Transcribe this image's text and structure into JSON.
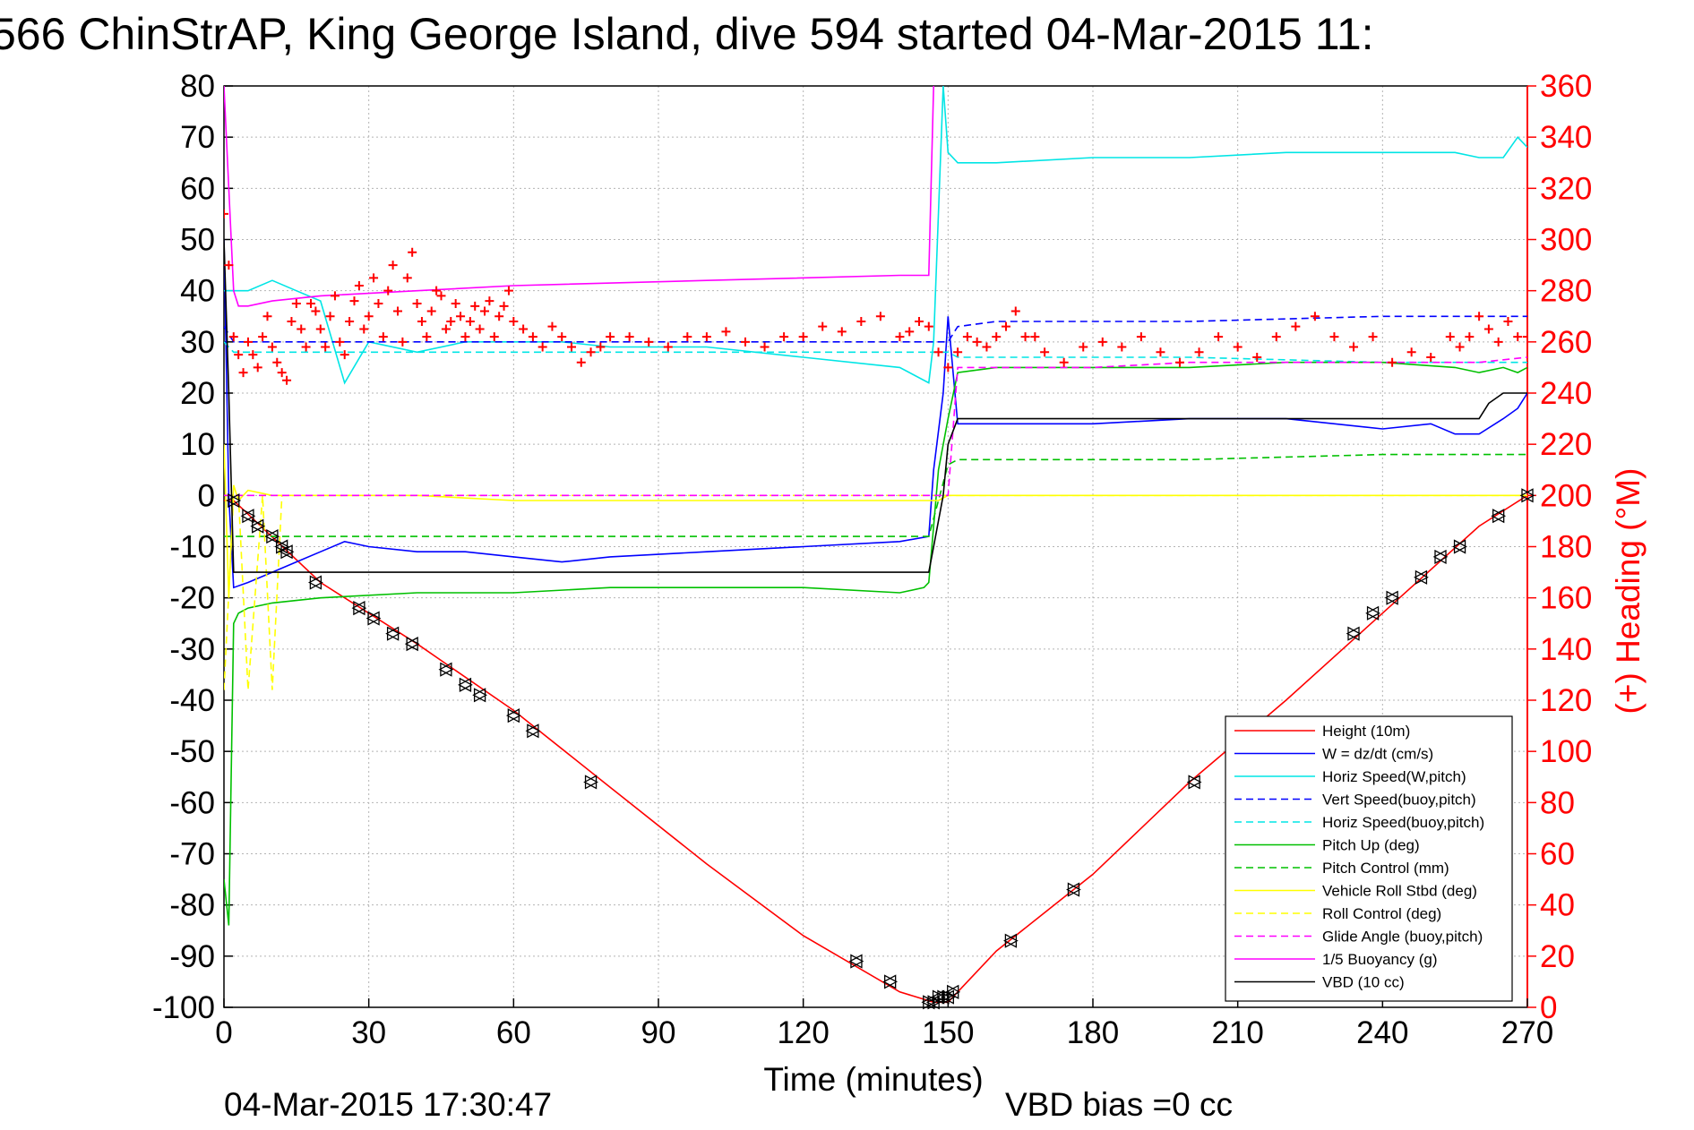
{
  "chart_data": {
    "type": "line",
    "title": "566 ChinStrAP, King George Island, dive 594 started 04-Mar-2015 11:",
    "xlabel": "Time (minutes)",
    "ylabel_right": "(+) Heading (°M)",
    "xlim": [
      0,
      270
    ],
    "ylim_left": [
      -100,
      80
    ],
    "ylim_right": [
      0,
      360
    ],
    "grid": true,
    "legend_position": "bottom-right",
    "x_ticks": [
      "0",
      "30",
      "60",
      "90",
      "120",
      "150",
      "180",
      "210",
      "240",
      "270"
    ],
    "y_ticks_left": [
      "80",
      "70",
      "60",
      "50",
      "40",
      "30",
      "20",
      "10",
      "0",
      "-10",
      "-20",
      "-30",
      "-40",
      "-50",
      "-60",
      "-70",
      "-80",
      "-90",
      "-100"
    ],
    "y_ticks_right": [
      "360",
      "340",
      "320",
      "300",
      "280",
      "260",
      "240",
      "220",
      "200",
      "180",
      "160",
      "140",
      "120",
      "100",
      "80",
      "60",
      "40",
      "20",
      "0"
    ],
    "footer_date": "04-Mar-2015 17:30:47",
    "footer_note": "VBD bias =0 cc",
    "series": [
      {
        "name": "Height (10m)",
        "color": "#ff0000",
        "style": "solid",
        "x": [
          0,
          2,
          20,
          40,
          60,
          80,
          100,
          120,
          140,
          147,
          150,
          160,
          180,
          200,
          220,
          240,
          260,
          270
        ],
        "y": [
          -1,
          -1,
          -17,
          -29,
          -42,
          -57,
          -72,
          -86,
          -97,
          -99,
          -99,
          -89,
          -74,
          -56,
          -40,
          -23,
          -6,
          0
        ]
      },
      {
        "name": "W = dz/dt (cm/s)",
        "color": "#0000ff",
        "style": "solid",
        "x": [
          0,
          1,
          2,
          5,
          10,
          15,
          20,
          25,
          30,
          40,
          50,
          60,
          70,
          80,
          100,
          120,
          140,
          146,
          147,
          149,
          150,
          152,
          160,
          180,
          200,
          220,
          240,
          250,
          255,
          260,
          265,
          268,
          270
        ],
        "y": [
          50,
          0,
          -18,
          -17,
          -15,
          -13,
          -11,
          -9,
          -10,
          -11,
          -11,
          -12,
          -13,
          -12,
          -11,
          -10,
          -9,
          -8,
          5,
          20,
          35,
          14,
          14,
          14,
          15,
          15,
          13,
          14,
          12,
          12,
          15,
          17,
          20
        ]
      },
      {
        "name": "Horiz Speed(W,pitch)",
        "color": "#00e5e5",
        "style": "solid",
        "x": [
          0,
          2,
          5,
          10,
          15,
          20,
          25,
          30,
          40,
          50,
          60,
          70,
          80,
          100,
          120,
          140,
          146,
          147,
          149,
          150,
          152,
          160,
          180,
          200,
          220,
          240,
          250,
          255,
          260,
          265,
          268,
          270
        ],
        "y": [
          40,
          40,
          40,
          42,
          40,
          38,
          22,
          30,
          28,
          30,
          30,
          30,
          29,
          29,
          27,
          25,
          22,
          30,
          80,
          67,
          65,
          65,
          66,
          66,
          67,
          67,
          67,
          67,
          66,
          66,
          70,
          68
        ]
      },
      {
        "name": "Vert Speed(buoy,pitch)",
        "color": "#0000ff",
        "style": "dashed",
        "x": [
          0,
          2,
          20,
          60,
          100,
          140,
          146,
          150,
          152,
          160,
          200,
          240,
          260,
          265,
          270
        ],
        "y": [
          33,
          30,
          30,
          30,
          30,
          30,
          30,
          30,
          33,
          34,
          34,
          35,
          35,
          35,
          35
        ]
      },
      {
        "name": "Horiz Speed(buoy,pitch)",
        "color": "#00e5e5",
        "style": "dashed",
        "x": [
          0,
          2,
          20,
          60,
          100,
          140,
          146,
          150,
          152,
          160,
          200,
          240,
          260,
          265,
          270
        ],
        "y": [
          30,
          28,
          28,
          28,
          28,
          28,
          28,
          28,
          27,
          27,
          27,
          26,
          26,
          26,
          26
        ]
      },
      {
        "name": "Pitch Up (deg)",
        "color": "#00c000",
        "style": "solid",
        "x": [
          0,
          1,
          2,
          3,
          5,
          10,
          20,
          40,
          60,
          80,
          100,
          120,
          140,
          145,
          146,
          148,
          150,
          152,
          160,
          180,
          200,
          220,
          240,
          255,
          260,
          265,
          268,
          270
        ],
        "y": [
          -75,
          -84,
          -25,
          -23,
          -22,
          -21,
          -20,
          -19,
          -19,
          -18,
          -18,
          -18,
          -19,
          -18,
          -17,
          5,
          15,
          24,
          25,
          25,
          25,
          26,
          26,
          25,
          24,
          25,
          24,
          25
        ]
      },
      {
        "name": "Pitch Control (mm)",
        "color": "#00c000",
        "style": "dashed",
        "x": [
          0,
          2,
          3,
          145,
          146,
          150,
          152,
          200,
          240,
          270
        ],
        "y": [
          -8,
          -8,
          -8,
          -8,
          -8,
          6,
          7,
          7,
          8,
          8
        ]
      },
      {
        "name": "Vehicle Roll Stbd (deg)",
        "color": "#ffff00",
        "style": "solid",
        "x": [
          0,
          1,
          2,
          3,
          5,
          10,
          20,
          40,
          60,
          80,
          100,
          120,
          146,
          148,
          150,
          160,
          180,
          200,
          220,
          240,
          260,
          270
        ],
        "y": [
          10,
          -20,
          2,
          -1,
          1,
          0,
          0,
          0,
          -1,
          -1,
          -1,
          -1,
          -1,
          -1,
          0,
          0,
          0,
          0,
          0,
          0,
          0,
          0
        ]
      },
      {
        "name": "Roll Control (deg)",
        "color": "#ffff00",
        "style": "dashed",
        "x": [
          0,
          2,
          3,
          5,
          8,
          10,
          12,
          15,
          270
        ],
        "y": [
          -38,
          0,
          0,
          -38,
          0,
          -38,
          0,
          0,
          0
        ]
      },
      {
        "name": "Glide Angle (buoy,pitch)",
        "color": "#ff00ff",
        "style": "dashed",
        "x": [
          0,
          2,
          146,
          150,
          152,
          160,
          180,
          200,
          240,
          260,
          270
        ],
        "y": [
          0,
          0,
          0,
          0,
          25,
          25,
          25,
          26,
          26,
          26,
          27
        ]
      },
      {
        "name": "1/5 Buoyancy (g)",
        "color": "#ff00ff",
        "style": "solid",
        "x": [
          0,
          2,
          3,
          5,
          10,
          20,
          40,
          60,
          100,
          140,
          146,
          147
        ],
        "y": [
          80,
          40,
          37,
          37,
          38,
          39,
          40,
          41,
          42,
          43,
          43,
          80
        ]
      },
      {
        "name": "VBD (10 cc)",
        "color": "#000000",
        "style": "solid",
        "x": [
          0,
          1,
          2,
          3,
          5,
          10,
          20,
          40,
          60,
          100,
          140,
          146,
          147,
          149,
          150,
          152,
          160,
          200,
          240,
          260,
          262,
          265,
          270
        ],
        "y": [
          50,
          20,
          -15,
          -15,
          -15,
          -15,
          -15,
          -15,
          -15,
          -15,
          -15,
          -15,
          -10,
          0,
          10,
          15,
          15,
          15,
          15,
          15,
          18,
          20,
          20
        ]
      }
    ],
    "heading_series": {
      "name": "Heading",
      "color": "#ff0000",
      "marker": "+",
      "axis": "right",
      "x": [
        0,
        1,
        2,
        3,
        4,
        5,
        6,
        7,
        8,
        9,
        10,
        11,
        12,
        13,
        14,
        15,
        16,
        17,
        18,
        19,
        20,
        21,
        22,
        23,
        24,
        25,
        26,
        27,
        28,
        29,
        30,
        31,
        32,
        33,
        34,
        35,
        36,
        37,
        38,
        39,
        40,
        41,
        42,
        43,
        44,
        45,
        46,
        47,
        48,
        49,
        50,
        51,
        52,
        53,
        54,
        55,
        56,
        57,
        58,
        59,
        60,
        62,
        64,
        66,
        68,
        70,
        72,
        74,
        76,
        78,
        80,
        84,
        88,
        92,
        96,
        100,
        104,
        108,
        112,
        116,
        120,
        124,
        128,
        132,
        136,
        140,
        142,
        144,
        146,
        148,
        150,
        152,
        154,
        156,
        158,
        160,
        162,
        164,
        166,
        168,
        170,
        174,
        178,
        182,
        186,
        190,
        194,
        198,
        202,
        206,
        210,
        214,
        218,
        222,
        226,
        230,
        234,
        238,
        242,
        246,
        250,
        254,
        256,
        258,
        260,
        262,
        264,
        266,
        268,
        270
      ],
      "y": [
        310,
        290,
        262,
        255,
        248,
        260,
        255,
        250,
        262,
        270,
        258,
        252,
        248,
        245,
        268,
        275,
        265,
        258,
        275,
        272,
        265,
        258,
        270,
        278,
        260,
        255,
        268,
        276,
        282,
        265,
        270,
        285,
        275,
        262,
        280,
        290,
        272,
        260,
        285,
        295,
        275,
        268,
        262,
        272,
        280,
        278,
        265,
        268,
        275,
        270,
        262,
        268,
        274,
        265,
        272,
        276,
        262,
        270,
        274,
        280,
        268,
        265,
        262,
        258,
        266,
        262,
        258,
        252,
        256,
        258,
        262,
        262,
        260,
        258,
        262,
        262,
        264,
        260,
        258,
        262,
        262,
        266,
        264,
        268,
        270,
        262,
        264,
        268,
        266,
        256,
        250,
        256,
        262,
        260,
        258,
        262,
        266,
        272,
        262,
        262,
        256,
        252,
        258,
        260,
        258,
        262,
        256,
        252,
        256,
        262,
        258,
        254,
        262,
        266,
        270,
        262,
        258,
        262,
        252,
        256,
        254,
        262,
        258,
        262,
        270,
        265,
        260,
        268,
        262,
        262
      ]
    },
    "markers_triangle": {
      "color": "#000000",
      "x": [
        2,
        5,
        7,
        10,
        12,
        13,
        19,
        28,
        31,
        35,
        39,
        46,
        50,
        53,
        60,
        64,
        76,
        131,
        138,
        146,
        147,
        148,
        149,
        150,
        151,
        163,
        176,
        201,
        234,
        238,
        242,
        248,
        252,
        256,
        264,
        270
      ],
      "y": [
        -1,
        -4,
        -6,
        -8,
        -10,
        -11,
        -17,
        -22,
        -24,
        -27,
        -29,
        -34,
        -37,
        -39,
        -43,
        -46,
        -56,
        -91,
        -95,
        -99,
        -99,
        -98,
        -98,
        -98,
        -97,
        -87,
        -77,
        -56,
        -27,
        -23,
        -20,
        -16,
        -12,
        -10,
        -4,
        0
      ]
    },
    "legend": [
      "Height (10m)",
      "W = dz/dt (cm/s)",
      "Horiz Speed(W,pitch)",
      "Vert Speed(buoy,pitch)",
      "Horiz Speed(buoy,pitch)",
      "Pitch Up (deg)",
      "Pitch Control (mm)",
      "Vehicle Roll Stbd (deg)",
      "Roll Control (deg)",
      "Glide Angle (buoy,pitch)",
      "1/5 Buoyancy (g)",
      "VBD (10 cc)"
    ]
  }
}
